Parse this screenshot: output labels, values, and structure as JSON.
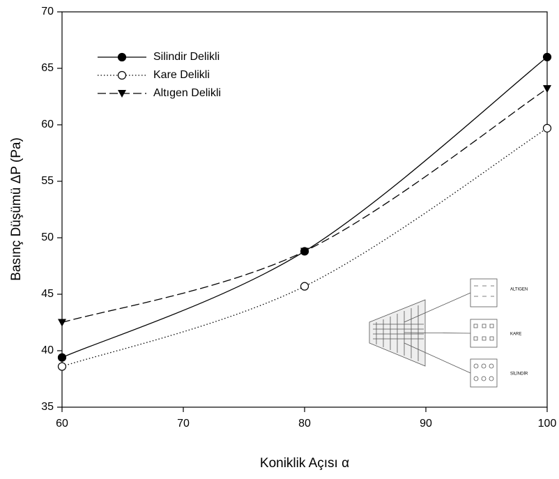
{
  "chart_data": {
    "type": "line",
    "xlabel": "Koniklik Açısı α",
    "ylabel": "Basınç Düşümü ΔP (Pa)",
    "x": [
      60,
      80,
      100
    ],
    "series": [
      {
        "name": "Silindir Delikli",
        "color": "#000000",
        "line_style": "solid",
        "marker": "circle",
        "values": [
          39.4,
          48.8,
          66.0
        ]
      },
      {
        "name": "Kare Delikli",
        "color": "#000000",
        "line_style": "dotted",
        "marker": "open-circle",
        "values": [
          38.6,
          45.7,
          59.7
        ]
      },
      {
        "name": "Altıgen Delikli",
        "color": "#000000",
        "line_style": "dashed",
        "marker": "triangle-down",
        "values": [
          42.5,
          48.8,
          63.2
        ]
      }
    ],
    "xlim": [
      60,
      100
    ],
    "xticks": [
      60,
      70,
      80,
      90,
      100
    ],
    "ylim": [
      35,
      70
    ],
    "yticks": [
      35,
      40,
      45,
      50,
      55,
      60,
      65,
      70
    ],
    "grid": false,
    "legend": "upper left",
    "annotations": [
      "ALTIGEN",
      "KARE",
      "SİLİNDİR"
    ]
  }
}
